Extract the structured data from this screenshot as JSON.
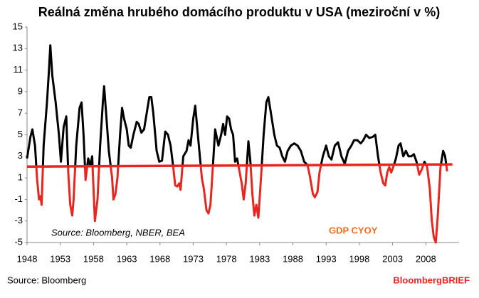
{
  "chart_data": {
    "type": "line",
    "title": "Reálná změna hrubého domácího produktu v USA (meziroční v %)",
    "annotation": "Source: Bloomberg, NBER, BEA",
    "footer": "Source: Bloomberg",
    "brand": "BloombergBRIEF",
    "xlim": [
      1948,
      2013
    ],
    "xticks": [
      1948,
      1953,
      1958,
      1963,
      1968,
      1973,
      1978,
      1983,
      1988,
      1993,
      1998,
      2003,
      2008
    ],
    "ylim": [
      -5,
      15
    ],
    "yticks": [
      -5,
      -3,
      -1,
      1,
      3,
      5,
      7,
      9,
      11,
      13,
      15
    ],
    "grid": false,
    "x": [
      1948.0,
      1948.5,
      1948.8,
      1949.2,
      1949.5,
      1949.8,
      1950.0,
      1950.2,
      1950.5,
      1951.0,
      1951.3,
      1951.5,
      1951.8,
      1952.3,
      1952.8,
      1953.1,
      1953.5,
      1953.9,
      1954.2,
      1954.5,
      1954.8,
      1955.0,
      1955.4,
      1955.9,
      1956.2,
      1956.5,
      1956.8,
      1957.2,
      1957.5,
      1957.8,
      1958.2,
      1958.6,
      1959.0,
      1959.4,
      1959.6,
      1959.9,
      1960.3,
      1960.8,
      1961.0,
      1961.3,
      1961.6,
      1962.0,
      1962.3,
      1962.6,
      1963.0,
      1963.3,
      1963.6,
      1964.0,
      1964.5,
      1964.8,
      1965.2,
      1965.6,
      1966.0,
      1966.4,
      1966.7,
      1967.0,
      1967.5,
      1967.9,
      1968.3,
      1968.8,
      1969.2,
      1969.6,
      1970.0,
      1970.3,
      1970.6,
      1970.9,
      1971.1,
      1971.5,
      1972.0,
      1972.3,
      1972.6,
      1973.0,
      1973.3,
      1973.7,
      1974.0,
      1974.3,
      1974.6,
      1975.0,
      1975.3,
      1975.6,
      1976.0,
      1976.3,
      1976.8,
      1977.2,
      1977.5,
      1977.8,
      1978.1,
      1978.4,
      1978.7,
      1979.0,
      1979.3,
      1979.6,
      1980.0,
      1980.3,
      1980.6,
      1980.9,
      1981.3,
      1981.6,
      1981.9,
      1982.2,
      1982.5,
      1982.8,
      1983.2,
      1983.6,
      1984.0,
      1984.3,
      1984.7,
      1985.2,
      1985.6,
      1986.0,
      1986.4,
      1986.8,
      1987.2,
      1987.7,
      1988.2,
      1988.7,
      1989.2,
      1989.7,
      1990.2,
      1990.6,
      1991.0,
      1991.3,
      1991.7,
      1992.0,
      1992.5,
      1993.0,
      1993.4,
      1993.8,
      1994.3,
      1994.8,
      1995.3,
      1995.8,
      1996.3,
      1996.8,
      1997.2,
      1997.7,
      1998.2,
      1998.6,
      1999.0,
      1999.5,
      2000.0,
      2000.4,
      2000.8,
      2001.2,
      2001.6,
      2001.9,
      2002.2,
      2002.5,
      2002.8,
      2003.1,
      2003.5,
      2003.9,
      2004.2,
      2004.6,
      2005.0,
      2005.4,
      2005.8,
      2006.2,
      2006.6,
      2007.0,
      2007.4,
      2007.8,
      2008.2,
      2008.6,
      2008.9,
      2009.2,
      2009.5,
      2009.8,
      2010.2,
      2010.6,
      2010.9,
      2011.2
    ],
    "series": [
      {
        "name": "GDP CYOY",
        "color": "#000000",
        "below_color": "#e8261f",
        "label_color": "#f26b21",
        "values": [
          2.8,
          4.8,
          5.5,
          4.0,
          1.0,
          -1.0,
          -0.7,
          -1.5,
          4.0,
          8.0,
          11.0,
          13.3,
          10.5,
          8.0,
          5.0,
          2.5,
          5.7,
          6.7,
          1.5,
          -1.5,
          -2.5,
          -1.0,
          4.0,
          7.5,
          8.0,
          5.0,
          0.8,
          2.8,
          2.1,
          3.0,
          -3.0,
          -1.0,
          4.0,
          8.0,
          9.5,
          7.0,
          3.5,
          1.0,
          -1.0,
          -0.5,
          1.0,
          5.0,
          7.5,
          6.5,
          5.5,
          4.0,
          3.8,
          5.0,
          6.2,
          6.0,
          5.2,
          5.5,
          7.0,
          8.5,
          8.5,
          7.0,
          3.5,
          2.5,
          2.6,
          5.3,
          5.0,
          4.0,
          2.0,
          0.3,
          0.2,
          0.5,
          -0.1,
          3.0,
          3.5,
          4.5,
          4.0,
          6.5,
          7.7,
          5.0,
          3.0,
          1.0,
          0.0,
          -2.0,
          -2.3,
          -1.5,
          2.5,
          5.5,
          4.0,
          5.0,
          6.0,
          5.0,
          6.7,
          6.5,
          5.5,
          5.0,
          2.5,
          2.8,
          1.5,
          0.5,
          -1.0,
          0.5,
          4.4,
          2.5,
          -0.5,
          -2.5,
          -1.5,
          -2.7,
          1.0,
          5.0,
          8.0,
          8.5,
          7.0,
          5.0,
          4.0,
          3.8,
          3.0,
          2.5,
          3.5,
          4.0,
          4.2,
          4.0,
          3.5,
          2.5,
          2.2,
          1.0,
          -0.5,
          -0.8,
          -0.3,
          1.5,
          3.0,
          4.0,
          3.0,
          2.7,
          4.0,
          4.3,
          3.0,
          2.3,
          3.5,
          4.0,
          4.5,
          4.5,
          4.2,
          4.5,
          5.0,
          4.7,
          4.8,
          5.0,
          3.0,
          1.5,
          0.5,
          0.3,
          1.5,
          2.0,
          1.5,
          2.0,
          2.8,
          4.0,
          4.2,
          3.0,
          3.5,
          3.0,
          3.0,
          3.2,
          2.5,
          1.3,
          1.8,
          2.5,
          2.0,
          0.0,
          -3.0,
          -4.5,
          -5.0,
          -2.5,
          2.0,
          3.5,
          3.0,
          1.6
        ]
      }
    ],
    "trend_line": {
      "x": [
        1948,
        2012
      ],
      "values": [
        2.05,
        2.25
      ],
      "color": "#e8261f"
    }
  }
}
